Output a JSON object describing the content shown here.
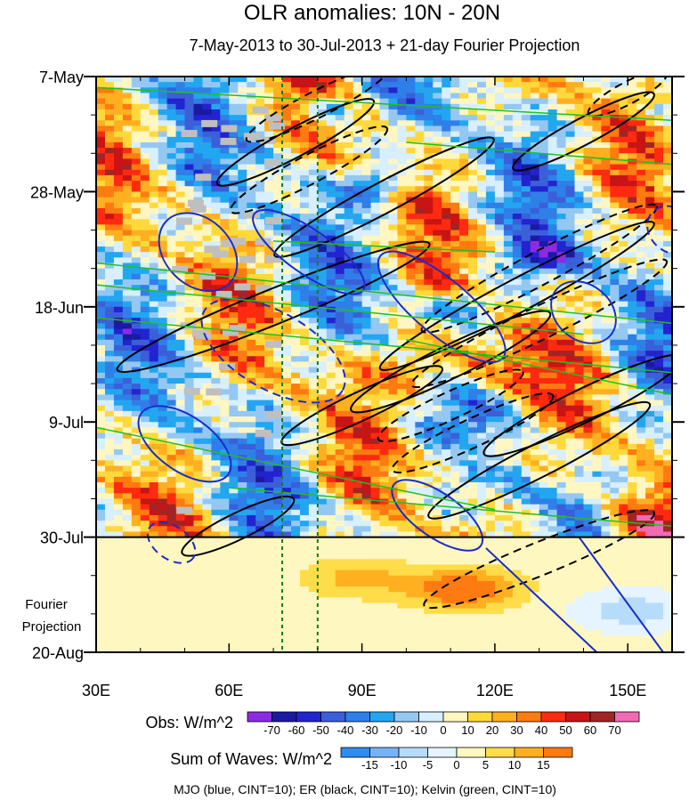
{
  "chart_data": {
    "type": "heatmap",
    "title": "OLR anomalies: 10N - 20N",
    "subtitle": "7-May-2013 to 30-Jul-2013 + 21-day Fourier Projection",
    "x_axis": {
      "range": [
        30,
        160
      ],
      "ticks": [
        30,
        60,
        90,
        120,
        150
      ],
      "tick_labels": [
        "30E",
        "60E",
        "90E",
        "120E",
        "150E"
      ],
      "minor_ticks": [
        40,
        50,
        70,
        80,
        100,
        110,
        130,
        140,
        160
      ]
    },
    "y_axis": {
      "range": [
        "7-May-2013",
        "20-Aug-2013"
      ],
      "direction": "time increases downward",
      "ticks": [
        "7-May",
        "28-May",
        "18-Jun",
        "9-Jul",
        "30-Jul",
        "20-Aug"
      ],
      "tick_days_from_start": [
        0,
        21,
        42,
        63,
        84,
        105
      ],
      "annotation": "Fourier\nProjection"
    },
    "observation_end": "30-Jul",
    "reference_longitudes": [
      72,
      80
    ],
    "obs_colorbar": {
      "label": "Obs: W/m^2",
      "levels": [
        -70,
        -60,
        -50,
        -40,
        -30,
        -20,
        -10,
        0,
        10,
        20,
        30,
        40,
        50,
        60,
        70
      ],
      "colors": [
        "#8c2be2",
        "#1a1aa0",
        "#2323d0",
        "#3b5fd9",
        "#2f7fe8",
        "#22a6f0",
        "#94c8f2",
        "#d7efff",
        "#fff6c2",
        "#ffd93b",
        "#ffb020",
        "#ff7a10",
        "#ff2a10",
        "#c81414",
        "#a02525",
        "#f06ab4"
      ]
    },
    "waves_colorbar": {
      "label": "Sum of Waves: W/m^2",
      "levels": [
        -15,
        -10,
        -5,
        0,
        5,
        10,
        15
      ],
      "colors": [
        "#2f8cf0",
        "#74b4f5",
        "#b7dcfb",
        "#e5f4ff",
        "#fff7c0",
        "#ffdc4a",
        "#ffb020",
        "#ff7a10"
      ]
    },
    "wave_legend": "MJO (blue, CINT=10); ER (black, CINT=10); Kelvin (green, CINT=10)",
    "wave_colors": {
      "MJO": "#1a2cc8",
      "ER": "#000000",
      "Kelvin": "#20c020"
    },
    "field_shown_as_noisy_contours": "OLR anomaly field is approximated as a grid of sampled cells",
    "projection_features": [
      {
        "label": "positive anomaly",
        "lon": 88,
        "day": 91,
        "value": 10
      },
      {
        "label": "positive anomaly",
        "lon": 112,
        "day": 93,
        "value": 20
      },
      {
        "label": "negative anomaly",
        "lon": 150,
        "day": 97,
        "value": -10
      }
    ]
  }
}
